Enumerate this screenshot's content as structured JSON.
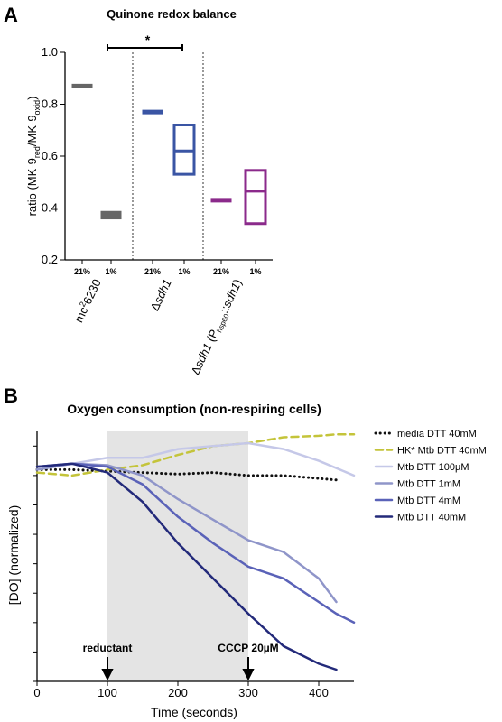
{
  "chart_data": [
    {
      "type": "box",
      "panel": "A",
      "title": "Quinone redox balance",
      "ylabel": [
        "ratio (MK-9",
        "red",
        "/MK-9",
        "oxid",
        ")"
      ],
      "categories": [
        "21%",
        "1%",
        "21%",
        "1%",
        "21%",
        "1%"
      ],
      "groups": [
        [
          "mc",
          "2",
          "6230"
        ],
        [
          "Δ",
          "sdh1"
        ],
        [
          "Δ",
          "sdh1",
          " (P",
          "hsp60",
          "::",
          "sdh1",
          ")"
        ]
      ],
      "low": [
        0.87,
        0.365,
        0.77,
        0.53,
        0.43,
        0.34
      ],
      "median": [
        0.87,
        0.37,
        0.77,
        0.62,
        0.43,
        0.465
      ],
      "high": [
        0.87,
        0.38,
        0.77,
        0.72,
        0.43,
        0.545
      ],
      "colors": [
        "#666666",
        "#666666",
        "#3a55a4",
        "#3a55a4",
        "#8b2a8b",
        "#8b2a8b"
      ],
      "significance": "*",
      "ylim": [
        0.2,
        1.0
      ],
      "yticks": [
        0.2,
        0.4,
        0.6,
        0.8,
        {
          "value": 1,
          "label": "1.0"
        }
      ]
    },
    {
      "type": "line",
      "panel": "B",
      "title": "Oxygen consumption (non-respiring cells)",
      "xlabel": "Time (seconds)",
      "ylabel": "[DO] (normalized)",
      "x": [
        0,
        50,
        100,
        150,
        200,
        250,
        300,
        350,
        400,
        425,
        450
      ],
      "series": [
        {
          "name": "media DTT 40mM",
          "color": "#111111",
          "style": "dotted",
          "values": [
            7.2,
            7.2,
            7.15,
            7.1,
            7.05,
            7.1,
            7.0,
            7.0,
            6.9,
            6.85,
            null
          ]
        },
        {
          "name": "HK* Mtb DTT 40mM",
          "color": "#c4c43a",
          "style": "dashed",
          "values": [
            7.1,
            7.0,
            7.2,
            7.35,
            7.7,
            8.0,
            8.1,
            8.3,
            8.35,
            8.4,
            8.4
          ]
        },
        {
          "name": "Mtb DTT 100µM",
          "color": "#c5c8e8",
          "style": "solid",
          "values": [
            7.2,
            7.4,
            7.6,
            7.6,
            7.9,
            8.0,
            8.1,
            7.9,
            7.5,
            7.25,
            7.0
          ]
        },
        {
          "name": "Mtb DTT 1mM",
          "color": "#8f95c9",
          "style": "solid",
          "values": [
            7.2,
            7.4,
            7.35,
            7.0,
            6.2,
            5.5,
            4.8,
            4.4,
            3.5,
            2.7,
            null
          ]
        },
        {
          "name": "Mtb DTT 4mM",
          "color": "#5a62b8",
          "style": "solid",
          "values": [
            7.3,
            7.4,
            7.3,
            6.7,
            5.6,
            4.7,
            3.9,
            3.5,
            2.7,
            2.3,
            2.0
          ]
        },
        {
          "name": "Mtb DTT 40mM",
          "color": "#232a7a",
          "style": "solid",
          "values": [
            7.3,
            7.4,
            7.1,
            6.1,
            4.7,
            3.5,
            2.3,
            1.2,
            0.6,
            0.4,
            null
          ]
        }
      ],
      "shade": [
        100,
        300
      ],
      "annotations": [
        {
          "x": 100,
          "label": "reductant"
        },
        {
          "x": 300,
          "label": "CCCP 20µM"
        }
      ],
      "xlim": [
        0,
        450
      ],
      "xticks": [
        0,
        100,
        200,
        300,
        400
      ],
      "ylim": [
        0,
        8.5
      ],
      "yticks": [
        0,
        1,
        2,
        3,
        4,
        5,
        6,
        7,
        8
      ]
    }
  ]
}
